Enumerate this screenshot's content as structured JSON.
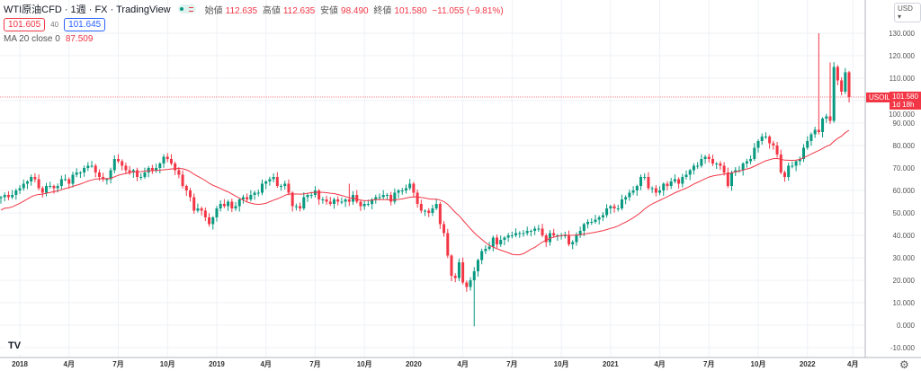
{
  "header": {
    "symbol": "WTI原油CFD",
    "interval": "1週",
    "exchange": "FX",
    "source": "TradingView",
    "open_label": "始値",
    "open": "112.635",
    "high_label": "高値",
    "high": "112.635",
    "low_label": "安値",
    "low": "98.490",
    "close_label": "終値",
    "close": "101.580",
    "change": "−11.055 (−9.81%)",
    "sell_price": "101.605",
    "spread": "40",
    "buy_price": "101.645",
    "ma_label": "MA 20 close 0",
    "ma_value": "87.509"
  },
  "axis": {
    "currency": "USD",
    "symbol_tag": "USOIL",
    "last_price": "101.580",
    "countdown": "1d 18h"
  },
  "colors": {
    "up": "#089981",
    "down": "#f23645",
    "ma": "#f23645",
    "grid": "#eef1f6"
  },
  "chart_data": {
    "type": "candlestick",
    "title": "WTI原油CFD 1週",
    "ylim": [
      -10,
      135
    ],
    "y_ticks": [
      "-10.000",
      "0.000",
      "10.000",
      "20.000",
      "30.000",
      "40.000",
      "50.000",
      "60.000",
      "70.000",
      "80.000",
      "90.000",
      "100.000",
      "110.000",
      "120.000",
      "130.000"
    ],
    "x_ticks": [
      {
        "label": "2018",
        "week": 5
      },
      {
        "label": "4月",
        "week": 18
      },
      {
        "label": "7月",
        "week": 31
      },
      {
        "label": "10月",
        "week": 44
      },
      {
        "label": "2019",
        "week": 57
      },
      {
        "label": "4月",
        "week": 70
      },
      {
        "label": "7月",
        "week": 83
      },
      {
        "label": "10月",
        "week": 96
      },
      {
        "label": "2020",
        "week": 109
      },
      {
        "label": "4月",
        "week": 122
      },
      {
        "label": "7月",
        "week": 135
      },
      {
        "label": "10月",
        "week": 148
      },
      {
        "label": "2021",
        "week": 161
      },
      {
        "label": "4月",
        "week": 174
      },
      {
        "label": "7月",
        "week": 187
      },
      {
        "label": "10月",
        "week": 200
      },
      {
        "label": "2022",
        "week": 213
      },
      {
        "label": "4月",
        "week": 225
      }
    ],
    "weekly_close": [
      57,
      58,
      57,
      58,
      60,
      61,
      63,
      64,
      66,
      65,
      61,
      59,
      62,
      62,
      61,
      62,
      65,
      65,
      63,
      67,
      68,
      68,
      70,
      71,
      71,
      68,
      66,
      65,
      65,
      69,
      74,
      73,
      71,
      69,
      68,
      69,
      66,
      66,
      68,
      70,
      69,
      70,
      72,
      75,
      74,
      72,
      69,
      67,
      62,
      60,
      57,
      51,
      52,
      51,
      48,
      45,
      48,
      52,
      54,
      53,
      55,
      52,
      53,
      56,
      57,
      56,
      58,
      59,
      59,
      63,
      64,
      65,
      66,
      62,
      62,
      63,
      59,
      53,
      53,
      52,
      57,
      58,
      58,
      60,
      56,
      56,
      55,
      54,
      56,
      55,
      55,
      56,
      55,
      58,
      55,
      53,
      54,
      54,
      56,
      57,
      57,
      58,
      58,
      55,
      59,
      60,
      60,
      61,
      63,
      59,
      54,
      51,
      51,
      50,
      52,
      54,
      45,
      41,
      31,
      22,
      21,
      28,
      19,
      17,
      20,
      24,
      29,
      33,
      34,
      35,
      39,
      36,
      38,
      39,
      40,
      40,
      41,
      41,
      41,
      42,
      42,
      43,
      43,
      40,
      37,
      41,
      40,
      40,
      40,
      40,
      36,
      37,
      40,
      42,
      45,
      46,
      46,
      47,
      48,
      49,
      52,
      53,
      52,
      52,
      56,
      57,
      59,
      60,
      62,
      66,
      66,
      61,
      61,
      59,
      60,
      63,
      62,
      64,
      65,
      63,
      66,
      67,
      69,
      71,
      71,
      74,
      75,
      74,
      72,
      72,
      71,
      68,
      62,
      68,
      69,
      69,
      72,
      73,
      74,
      79,
      82,
      84,
      84,
      81,
      80,
      76,
      68,
      66,
      71,
      71,
      73,
      74,
      79,
      82,
      85,
      87,
      86,
      92,
      93,
      91,
      115,
      109,
      104,
      112.635,
      101.58
    ],
    "first_open": 56.5,
    "extremes": [
      {
        "week": 125,
        "low": -0.5
      },
      {
        "week": 216,
        "high": 130
      },
      {
        "week": 219,
        "high": 117
      },
      {
        "week": 92,
        "high": 63
      }
    ],
    "ma_period": 20,
    "last_price": 101.58
  }
}
